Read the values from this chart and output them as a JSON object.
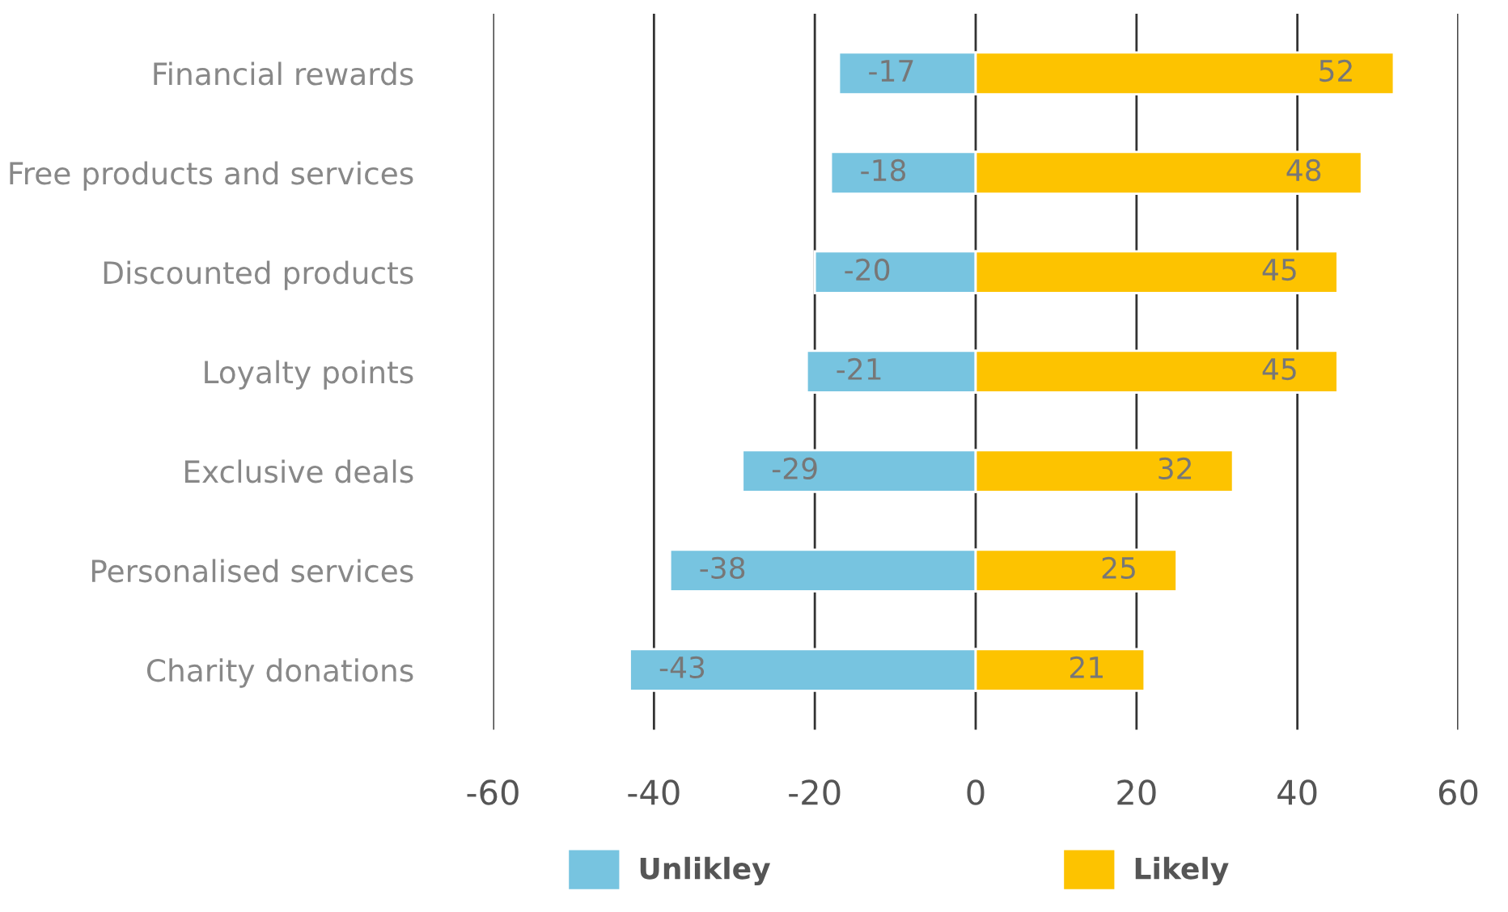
{
  "chart_data": {
    "type": "bar",
    "orientation": "horizontal",
    "stacked": true,
    "categories": [
      "Financial rewards",
      "Free products and services",
      "Discounted products",
      "Loyalty points",
      "Exclusive deals",
      "Personalised services",
      "Charity donations"
    ],
    "series": [
      {
        "name": "Unlikley",
        "color": "#77c4e0",
        "values": [
          -17,
          -18,
          -20,
          -21,
          -29,
          -38,
          -43
        ]
      },
      {
        "name": "Likely",
        "color": "#fdc300",
        "values": [
          52,
          48,
          45,
          45,
          32,
          25,
          21
        ]
      }
    ],
    "xlim": [
      -60,
      60
    ],
    "xticks": [
      -60,
      -40,
      -20,
      0,
      20,
      40,
      60
    ],
    "grid": "x",
    "legend": "bottom",
    "data_labels": true
  }
}
